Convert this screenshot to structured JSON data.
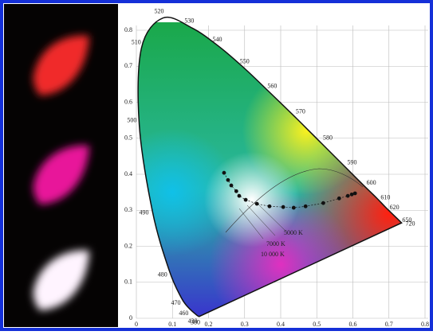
{
  "chart_data": {
    "type": "scatter",
    "xlim": [
      0,
      0.8
    ],
    "ylim": [
      0,
      0.8
    ],
    "xticks": [
      0,
      0.1,
      0.2,
      0.3,
      0.4,
      0.5,
      0.6,
      0.7,
      0.8
    ],
    "yticks": [
      0,
      0.1,
      0.2,
      0.3,
      0.4,
      0.5,
      0.6,
      0.7,
      0.8
    ],
    "grid": true,
    "color": "#111111",
    "x": [
      0.243,
      0.254,
      0.263,
      0.277,
      0.285,
      0.303,
      0.334,
      0.369,
      0.407,
      0.436,
      0.469,
      0.518,
      0.562,
      0.586,
      0.597,
      0.606
    ],
    "values": [
      0.404,
      0.384,
      0.369,
      0.353,
      0.34,
      0.329,
      0.318,
      0.311,
      0.309,
      0.307,
      0.311,
      0.32,
      0.333,
      0.34,
      0.344,
      0.347
    ],
    "spectral_locus": {
      "labels": [
        380,
        430,
        460,
        470,
        480,
        490,
        500,
        510,
        520,
        530,
        540,
        550,
        560,
        570,
        580,
        590,
        600,
        610,
        620,
        650,
        720
      ],
      "x": [
        0.174,
        0.167,
        0.144,
        0.124,
        0.091,
        0.045,
        0.008,
        0.014,
        0.074,
        0.155,
        0.23,
        0.302,
        0.373,
        0.444,
        0.512,
        0.575,
        0.627,
        0.666,
        0.691,
        0.726,
        0.735
      ],
      "y": [
        0.005,
        0.009,
        0.03,
        0.058,
        0.133,
        0.295,
        0.538,
        0.75,
        0.834,
        0.806,
        0.754,
        0.692,
        0.624,
        0.555,
        0.487,
        0.424,
        0.372,
        0.334,
        0.308,
        0.274,
        0.265
      ]
    },
    "annotations": [
      "5000 K",
      "7000 K",
      "10 000 K"
    ]
  }
}
